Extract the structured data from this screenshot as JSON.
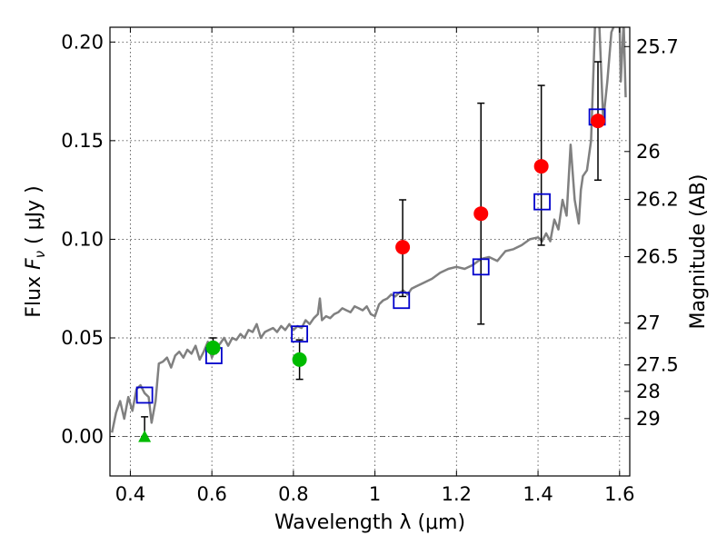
{
  "chart_data": {
    "type": "scatter",
    "xlabel": "Wavelength  λ (μm)",
    "ylabel": "Flux  F_ν  ( μJy )",
    "y2label": "Magnitude (AB)",
    "xlim": [
      0.35,
      1.625
    ],
    "ylim": [
      -0.02,
      0.2075
    ],
    "grid": true,
    "x_ticks": [
      {
        "value": 0.4,
        "label": "0.4"
      },
      {
        "value": 0.6,
        "label": "0.6"
      },
      {
        "value": 0.8,
        "label": "0.8"
      },
      {
        "value": 1.0,
        "label": "1"
      },
      {
        "value": 1.2,
        "label": "1.2"
      },
      {
        "value": 1.4,
        "label": "1.4"
      },
      {
        "value": 1.6,
        "label": "1.6"
      }
    ],
    "y_ticks": [
      {
        "value": 0.0,
        "label": "0.00"
      },
      {
        "value": 0.05,
        "label": "0.05"
      },
      {
        "value": 0.1,
        "label": "0.10"
      },
      {
        "value": 0.15,
        "label": "0.15"
      },
      {
        "value": 0.2,
        "label": "0.20"
      }
    ],
    "y2_ticks": [
      {
        "flux": 0.1977,
        "label": "25.7"
      },
      {
        "flux": 0.1445,
        "label": "26"
      },
      {
        "flux": 0.1202,
        "label": "26.2"
      },
      {
        "flux": 0.0912,
        "label": "26.5"
      },
      {
        "flux": 0.0575,
        "label": "27"
      },
      {
        "flux": 0.0363,
        "label": "27.5"
      },
      {
        "flux": 0.0229,
        "label": "28"
      },
      {
        "flux": 0.0091,
        "label": "29"
      }
    ],
    "zero_line": {
      "y": 0.0,
      "color": "#555555"
    },
    "series": [
      {
        "role": "model-spectrum",
        "marker": "line",
        "color": "#808080",
        "x": [
          0.355,
          0.365,
          0.375,
          0.385,
          0.395,
          0.405,
          0.415,
          0.425,
          0.435,
          0.445,
          0.452,
          0.462,
          0.47,
          0.48,
          0.49,
          0.5,
          0.51,
          0.52,
          0.53,
          0.54,
          0.55,
          0.56,
          0.57,
          0.58,
          0.59,
          0.6,
          0.61,
          0.62,
          0.63,
          0.64,
          0.65,
          0.66,
          0.67,
          0.68,
          0.69,
          0.7,
          0.71,
          0.72,
          0.73,
          0.74,
          0.75,
          0.76,
          0.77,
          0.78,
          0.79,
          0.8,
          0.81,
          0.82,
          0.83,
          0.84,
          0.85,
          0.86,
          0.865,
          0.87,
          0.88,
          0.89,
          0.9,
          0.91,
          0.92,
          0.93,
          0.94,
          0.95,
          0.96,
          0.97,
          0.98,
          0.99,
          1.0,
          1.01,
          1.02,
          1.03,
          1.04,
          1.05,
          1.06,
          1.07,
          1.08,
          1.09,
          1.1,
          1.12,
          1.14,
          1.16,
          1.18,
          1.2,
          1.22,
          1.24,
          1.26,
          1.28,
          1.3,
          1.32,
          1.34,
          1.36,
          1.38,
          1.4,
          1.41,
          1.42,
          1.43,
          1.44,
          1.45,
          1.46,
          1.47,
          1.48,
          1.49,
          1.5,
          1.505,
          1.51,
          1.52,
          1.53,
          1.54,
          1.55,
          1.56,
          1.57,
          1.58,
          1.59,
          1.6,
          1.603,
          1.61,
          1.615
        ],
        "y": [
          0.002,
          0.012,
          0.018,
          0.009,
          0.02,
          0.013,
          0.024,
          0.026,
          0.022,
          0.02,
          0.007,
          0.018,
          0.037,
          0.038,
          0.04,
          0.035,
          0.041,
          0.043,
          0.04,
          0.044,
          0.042,
          0.046,
          0.039,
          0.043,
          0.048,
          0.04,
          0.045,
          0.047,
          0.05,
          0.046,
          0.05,
          0.049,
          0.052,
          0.05,
          0.054,
          0.053,
          0.057,
          0.05,
          0.053,
          0.054,
          0.055,
          0.053,
          0.056,
          0.054,
          0.057,
          0.054,
          0.056,
          0.055,
          0.059,
          0.057,
          0.06,
          0.062,
          0.07,
          0.059,
          0.061,
          0.06,
          0.062,
          0.063,
          0.065,
          0.064,
          0.063,
          0.066,
          0.065,
          0.064,
          0.066,
          0.062,
          0.061,
          0.067,
          0.069,
          0.07,
          0.072,
          0.071,
          0.073,
          0.074,
          0.072,
          0.075,
          0.076,
          0.078,
          0.08,
          0.083,
          0.085,
          0.086,
          0.085,
          0.087,
          0.09,
          0.091,
          0.089,
          0.094,
          0.095,
          0.097,
          0.1,
          0.101,
          0.099,
          0.103,
          0.099,
          0.11,
          0.105,
          0.12,
          0.112,
          0.148,
          0.12,
          0.108,
          0.125,
          0.132,
          0.135,
          0.15,
          0.21,
          0.21,
          0.16,
          0.18,
          0.205,
          0.21,
          0.21,
          0.18,
          0.21,
          0.172
        ]
      },
      {
        "role": "model-photometry",
        "marker": "open-square",
        "color": "#0000cc",
        "x": [
          0.435,
          0.605,
          0.815,
          1.065,
          1.26,
          1.41,
          1.545
        ],
        "y": [
          0.021,
          0.041,
          0.052,
          0.069,
          0.086,
          0.119,
          0.162
        ]
      },
      {
        "role": "observed-optical",
        "marker": "filled-circle",
        "color": "#00bb00",
        "x": [
          0.603,
          0.815
        ],
        "y": [
          0.045,
          0.039
        ],
        "err_low": [
          0.042,
          0.029
        ],
        "err_high": [
          0.05,
          0.049
        ]
      },
      {
        "role": "observed-nir",
        "marker": "filled-circle",
        "color": "#ff0000",
        "x": [
          1.068,
          1.26,
          1.408,
          1.547
        ],
        "y": [
          0.096,
          0.113,
          0.137,
          0.16
        ],
        "err_low": [
          0.071,
          0.057,
          0.097,
          0.13
        ],
        "err_high": [
          0.12,
          0.169,
          0.178,
          0.19
        ]
      },
      {
        "role": "upper-limit",
        "marker": "filled-triangle",
        "color": "#00bb00",
        "x": [
          0.435
        ],
        "y": [
          0.0
        ],
        "err_low": [
          0.0
        ],
        "err_high": [
          0.01
        ]
      }
    ]
  }
}
